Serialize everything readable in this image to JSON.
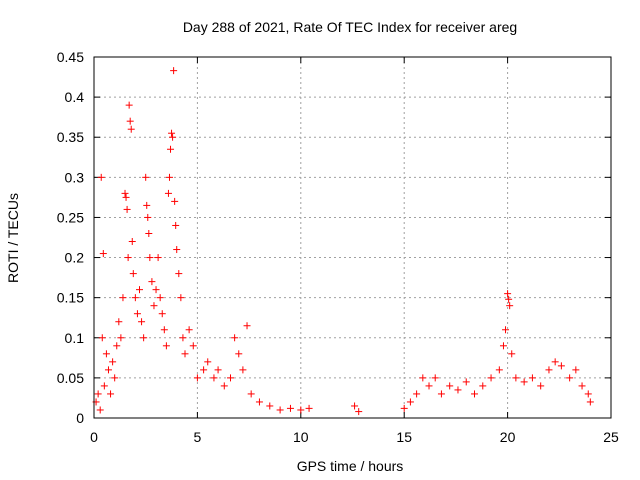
{
  "chart_data": {
    "type": "scatter",
    "title": "Day 288 of 2021, Rate Of TEC Index for receiver areg",
    "xlabel": "GPS time / hours",
    "ylabel": "ROTI / TECUs",
    "xlim": [
      0,
      25
    ],
    "ylim": [
      0,
      0.45
    ],
    "xticks": [
      "0",
      "5",
      "10",
      "15",
      "20",
      "25"
    ],
    "yticks": [
      "0",
      "0.05",
      "0.1",
      "0.15",
      "0.2",
      "0.25",
      "0.3",
      "0.35",
      "0.4",
      "0.45"
    ],
    "grid": true,
    "marker": "+",
    "series": [
      {
        "color": "#ff0000",
        "points": [
          [
            0.1,
            0.02
          ],
          [
            0.2,
            0.03
          ],
          [
            0.3,
            0.01
          ],
          [
            0.35,
            0.3
          ],
          [
            0.45,
            0.205
          ],
          [
            0.4,
            0.1
          ],
          [
            0.5,
            0.04
          ],
          [
            0.6,
            0.08
          ],
          [
            0.7,
            0.06
          ],
          [
            0.8,
            0.03
          ],
          [
            0.9,
            0.07
          ],
          [
            1.0,
            0.05
          ],
          [
            1.1,
            0.09
          ],
          [
            1.2,
            0.12
          ],
          [
            1.3,
            0.1
          ],
          [
            1.4,
            0.15
          ],
          [
            1.5,
            0.28
          ],
          [
            1.55,
            0.275
          ],
          [
            1.6,
            0.26
          ],
          [
            1.65,
            0.2
          ],
          [
            1.7,
            0.39
          ],
          [
            1.75,
            0.37
          ],
          [
            1.8,
            0.36
          ],
          [
            1.85,
            0.22
          ],
          [
            1.9,
            0.18
          ],
          [
            2.0,
            0.15
          ],
          [
            2.1,
            0.13
          ],
          [
            2.2,
            0.16
          ],
          [
            2.3,
            0.12
          ],
          [
            2.4,
            0.1
          ],
          [
            2.5,
            0.3
          ],
          [
            2.55,
            0.265
          ],
          [
            2.6,
            0.25
          ],
          [
            2.65,
            0.23
          ],
          [
            2.7,
            0.2
          ],
          [
            2.8,
            0.17
          ],
          [
            2.9,
            0.14
          ],
          [
            3.0,
            0.16
          ],
          [
            3.1,
            0.2
          ],
          [
            3.2,
            0.15
          ],
          [
            3.3,
            0.13
          ],
          [
            3.4,
            0.11
          ],
          [
            3.5,
            0.09
          ],
          [
            3.6,
            0.28
          ],
          [
            3.65,
            0.3
          ],
          [
            3.7,
            0.335
          ],
          [
            3.75,
            0.355
          ],
          [
            3.8,
            0.35
          ],
          [
            3.85,
            0.433
          ],
          [
            3.9,
            0.27
          ],
          [
            3.95,
            0.24
          ],
          [
            4.0,
            0.21
          ],
          [
            4.1,
            0.18
          ],
          [
            4.2,
            0.15
          ],
          [
            4.3,
            0.1
          ],
          [
            4.4,
            0.08
          ],
          [
            4.6,
            0.11
          ],
          [
            4.8,
            0.09
          ],
          [
            5.0,
            0.05
          ],
          [
            5.3,
            0.06
          ],
          [
            5.5,
            0.07
          ],
          [
            5.8,
            0.05
          ],
          [
            6.0,
            0.06
          ],
          [
            6.3,
            0.04
          ],
          [
            6.6,
            0.05
          ],
          [
            6.8,
            0.1
          ],
          [
            7.0,
            0.08
          ],
          [
            7.2,
            0.06
          ],
          [
            7.4,
            0.115
          ],
          [
            7.6,
            0.03
          ],
          [
            8.0,
            0.02
          ],
          [
            8.5,
            0.015
          ],
          [
            9.0,
            0.01
          ],
          [
            9.5,
            0.012
          ],
          [
            10.0,
            0.01
          ],
          [
            10.4,
            0.012
          ],
          [
            12.6,
            0.015
          ],
          [
            12.8,
            0.008
          ],
          [
            15.0,
            0.012
          ],
          [
            15.3,
            0.02
          ],
          [
            15.6,
            0.03
          ],
          [
            15.9,
            0.05
          ],
          [
            16.2,
            0.04
          ],
          [
            16.5,
            0.05
          ],
          [
            16.8,
            0.03
          ],
          [
            17.2,
            0.04
          ],
          [
            17.6,
            0.035
          ],
          [
            18.0,
            0.045
          ],
          [
            18.4,
            0.03
          ],
          [
            18.8,
            0.04
          ],
          [
            19.2,
            0.05
          ],
          [
            19.6,
            0.06
          ],
          [
            19.8,
            0.09
          ],
          [
            19.9,
            0.11
          ],
          [
            20.0,
            0.155
          ],
          [
            20.05,
            0.148
          ],
          [
            20.1,
            0.14
          ],
          [
            20.2,
            0.08
          ],
          [
            20.4,
            0.05
          ],
          [
            20.8,
            0.045
          ],
          [
            21.2,
            0.05
          ],
          [
            21.6,
            0.04
          ],
          [
            22.0,
            0.06
          ],
          [
            22.3,
            0.07
          ],
          [
            22.6,
            0.065
          ],
          [
            23.0,
            0.05
          ],
          [
            23.3,
            0.06
          ],
          [
            23.6,
            0.04
          ],
          [
            23.9,
            0.03
          ],
          [
            24.0,
            0.02
          ]
        ]
      }
    ]
  }
}
